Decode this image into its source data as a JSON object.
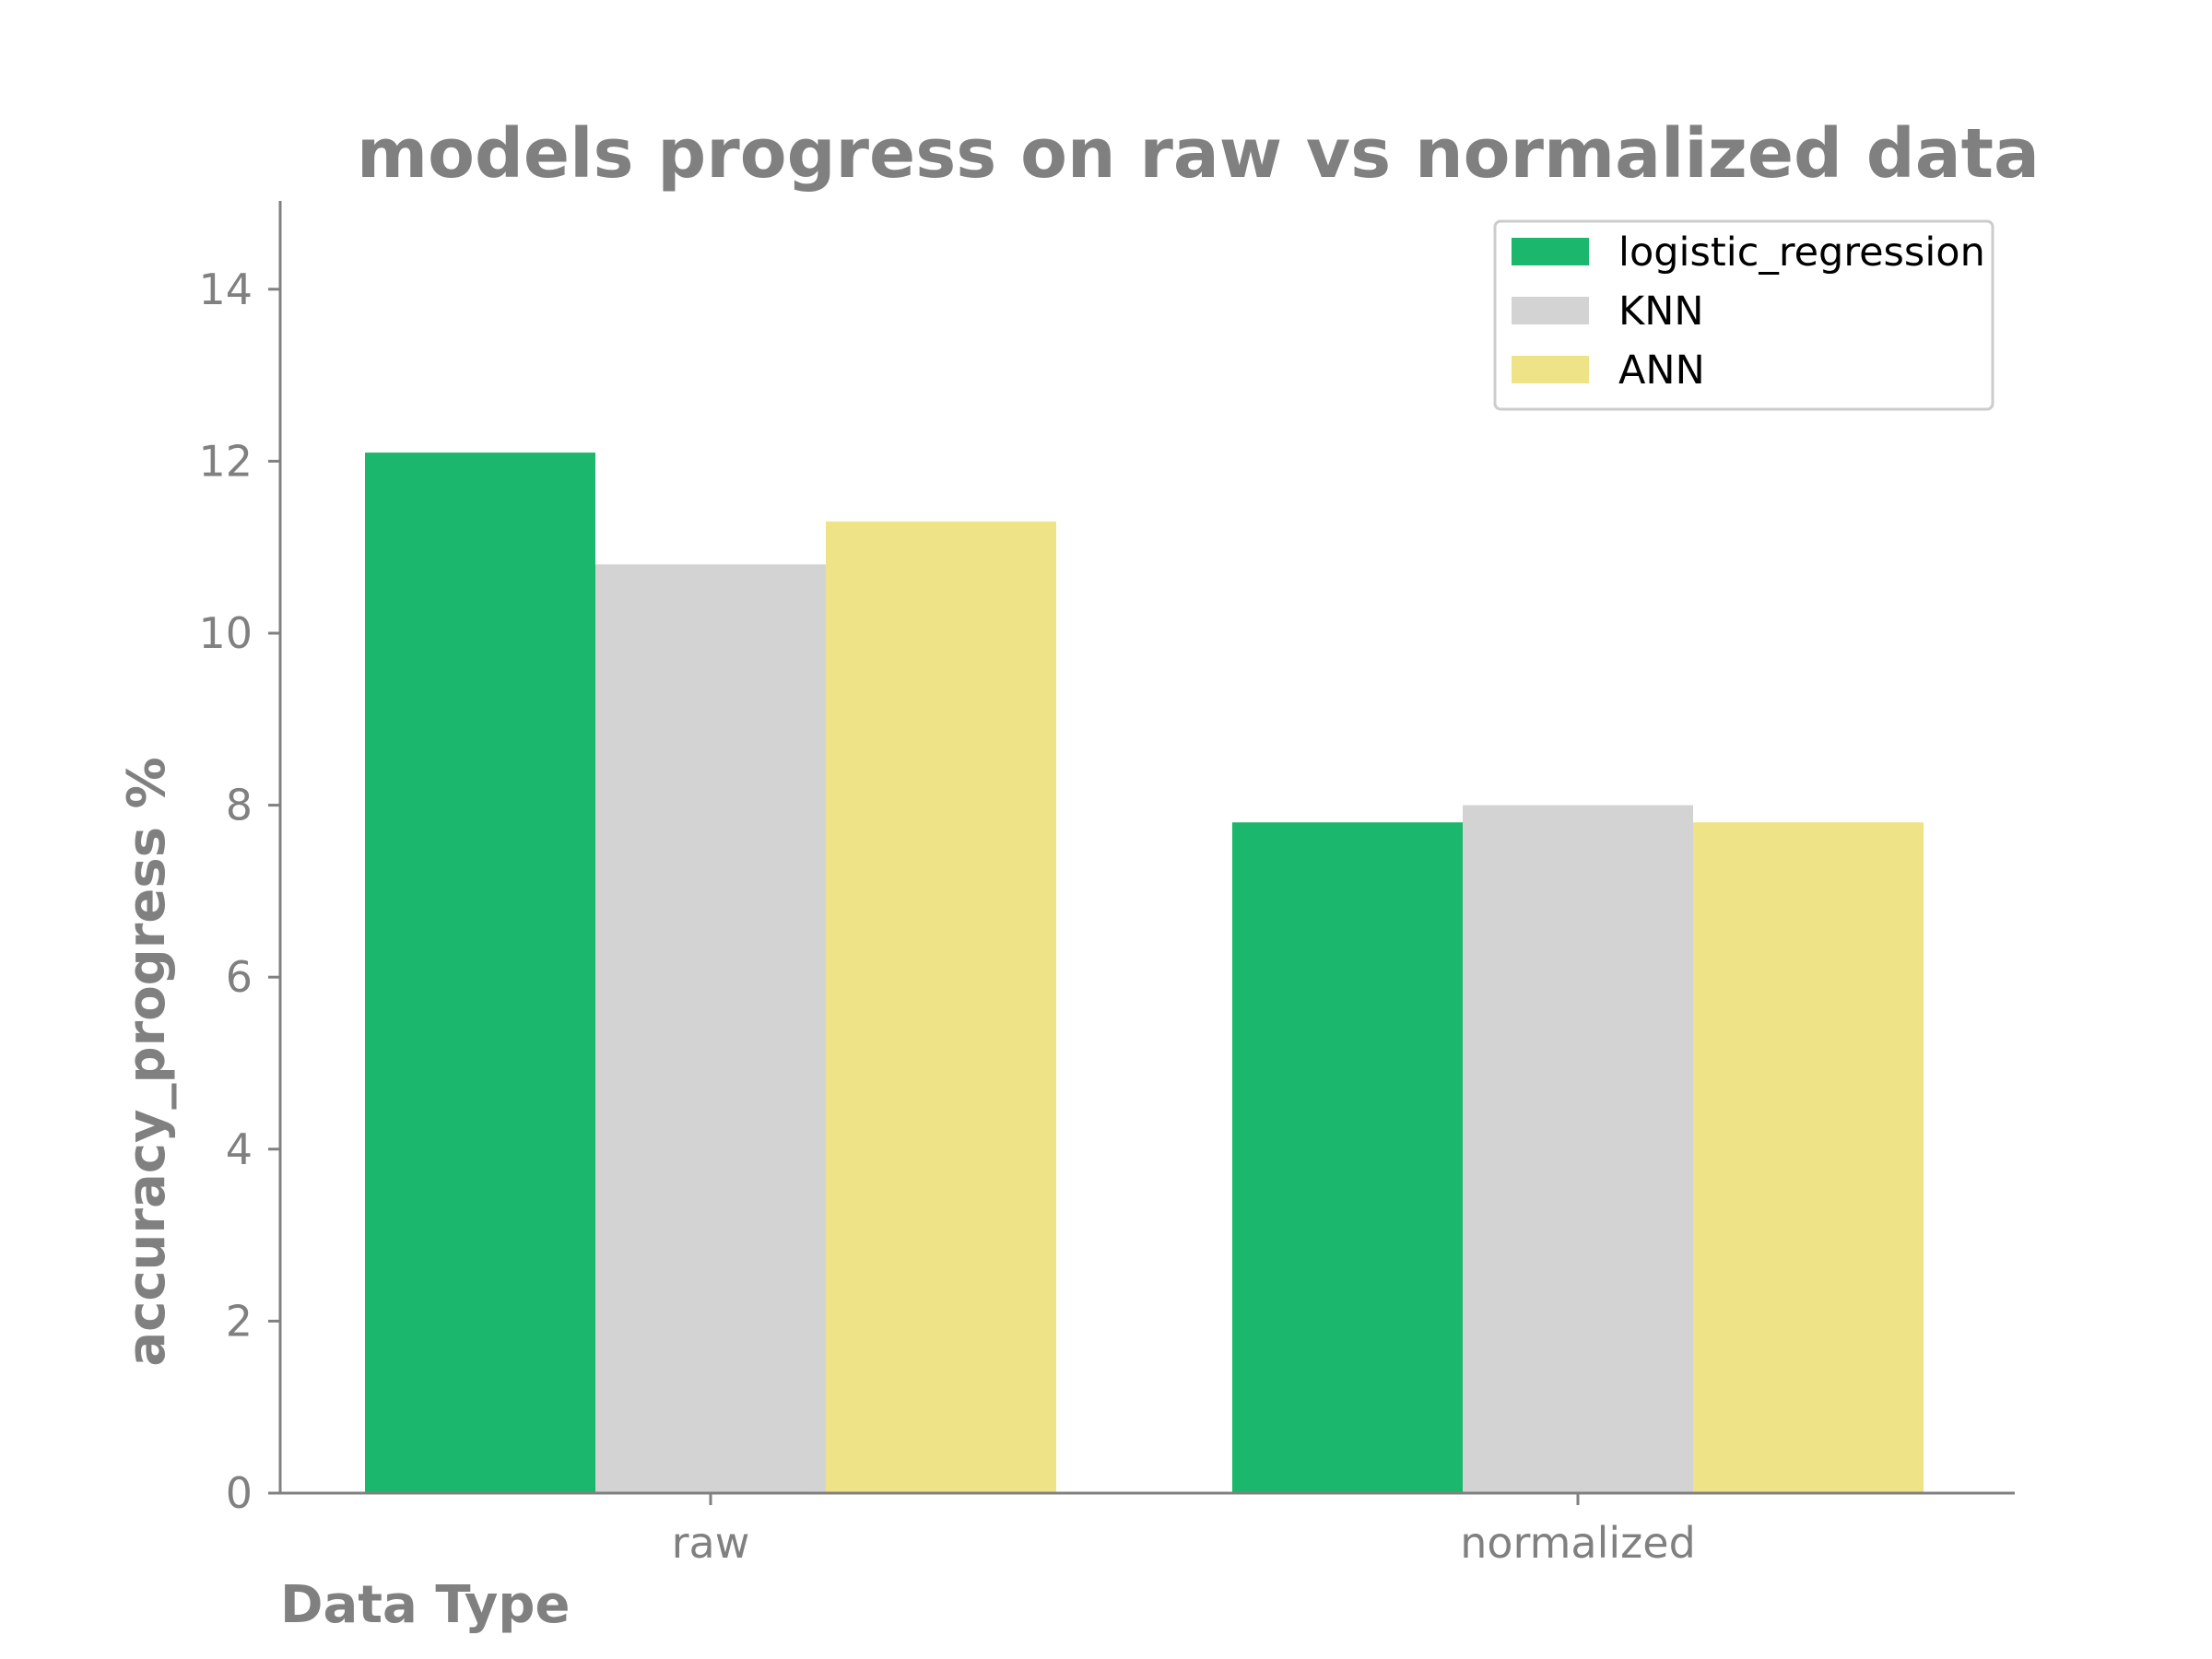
{
  "chart_data": {
    "type": "bar",
    "title": "models progress on raw vs normalized data",
    "xlabel": "Data Type",
    "ylabel": "accuracy_progress %",
    "categories": [
      "raw",
      "normalized"
    ],
    "series": [
      {
        "name": "logistic_regression",
        "color": "#1bb76c",
        "values": [
          12.1,
          7.8
        ]
      },
      {
        "name": "KNN",
        "color": "#d3d3d3",
        "values": [
          10.8,
          8.0
        ]
      },
      {
        "name": "ANN",
        "color": "#efe388",
        "values": [
          11.3,
          7.8
        ]
      }
    ],
    "ylim": [
      0,
      15
    ],
    "yticks": [
      0,
      2,
      4,
      6,
      8,
      10,
      12,
      14
    ],
    "grid": false,
    "legend": "top-right"
  }
}
